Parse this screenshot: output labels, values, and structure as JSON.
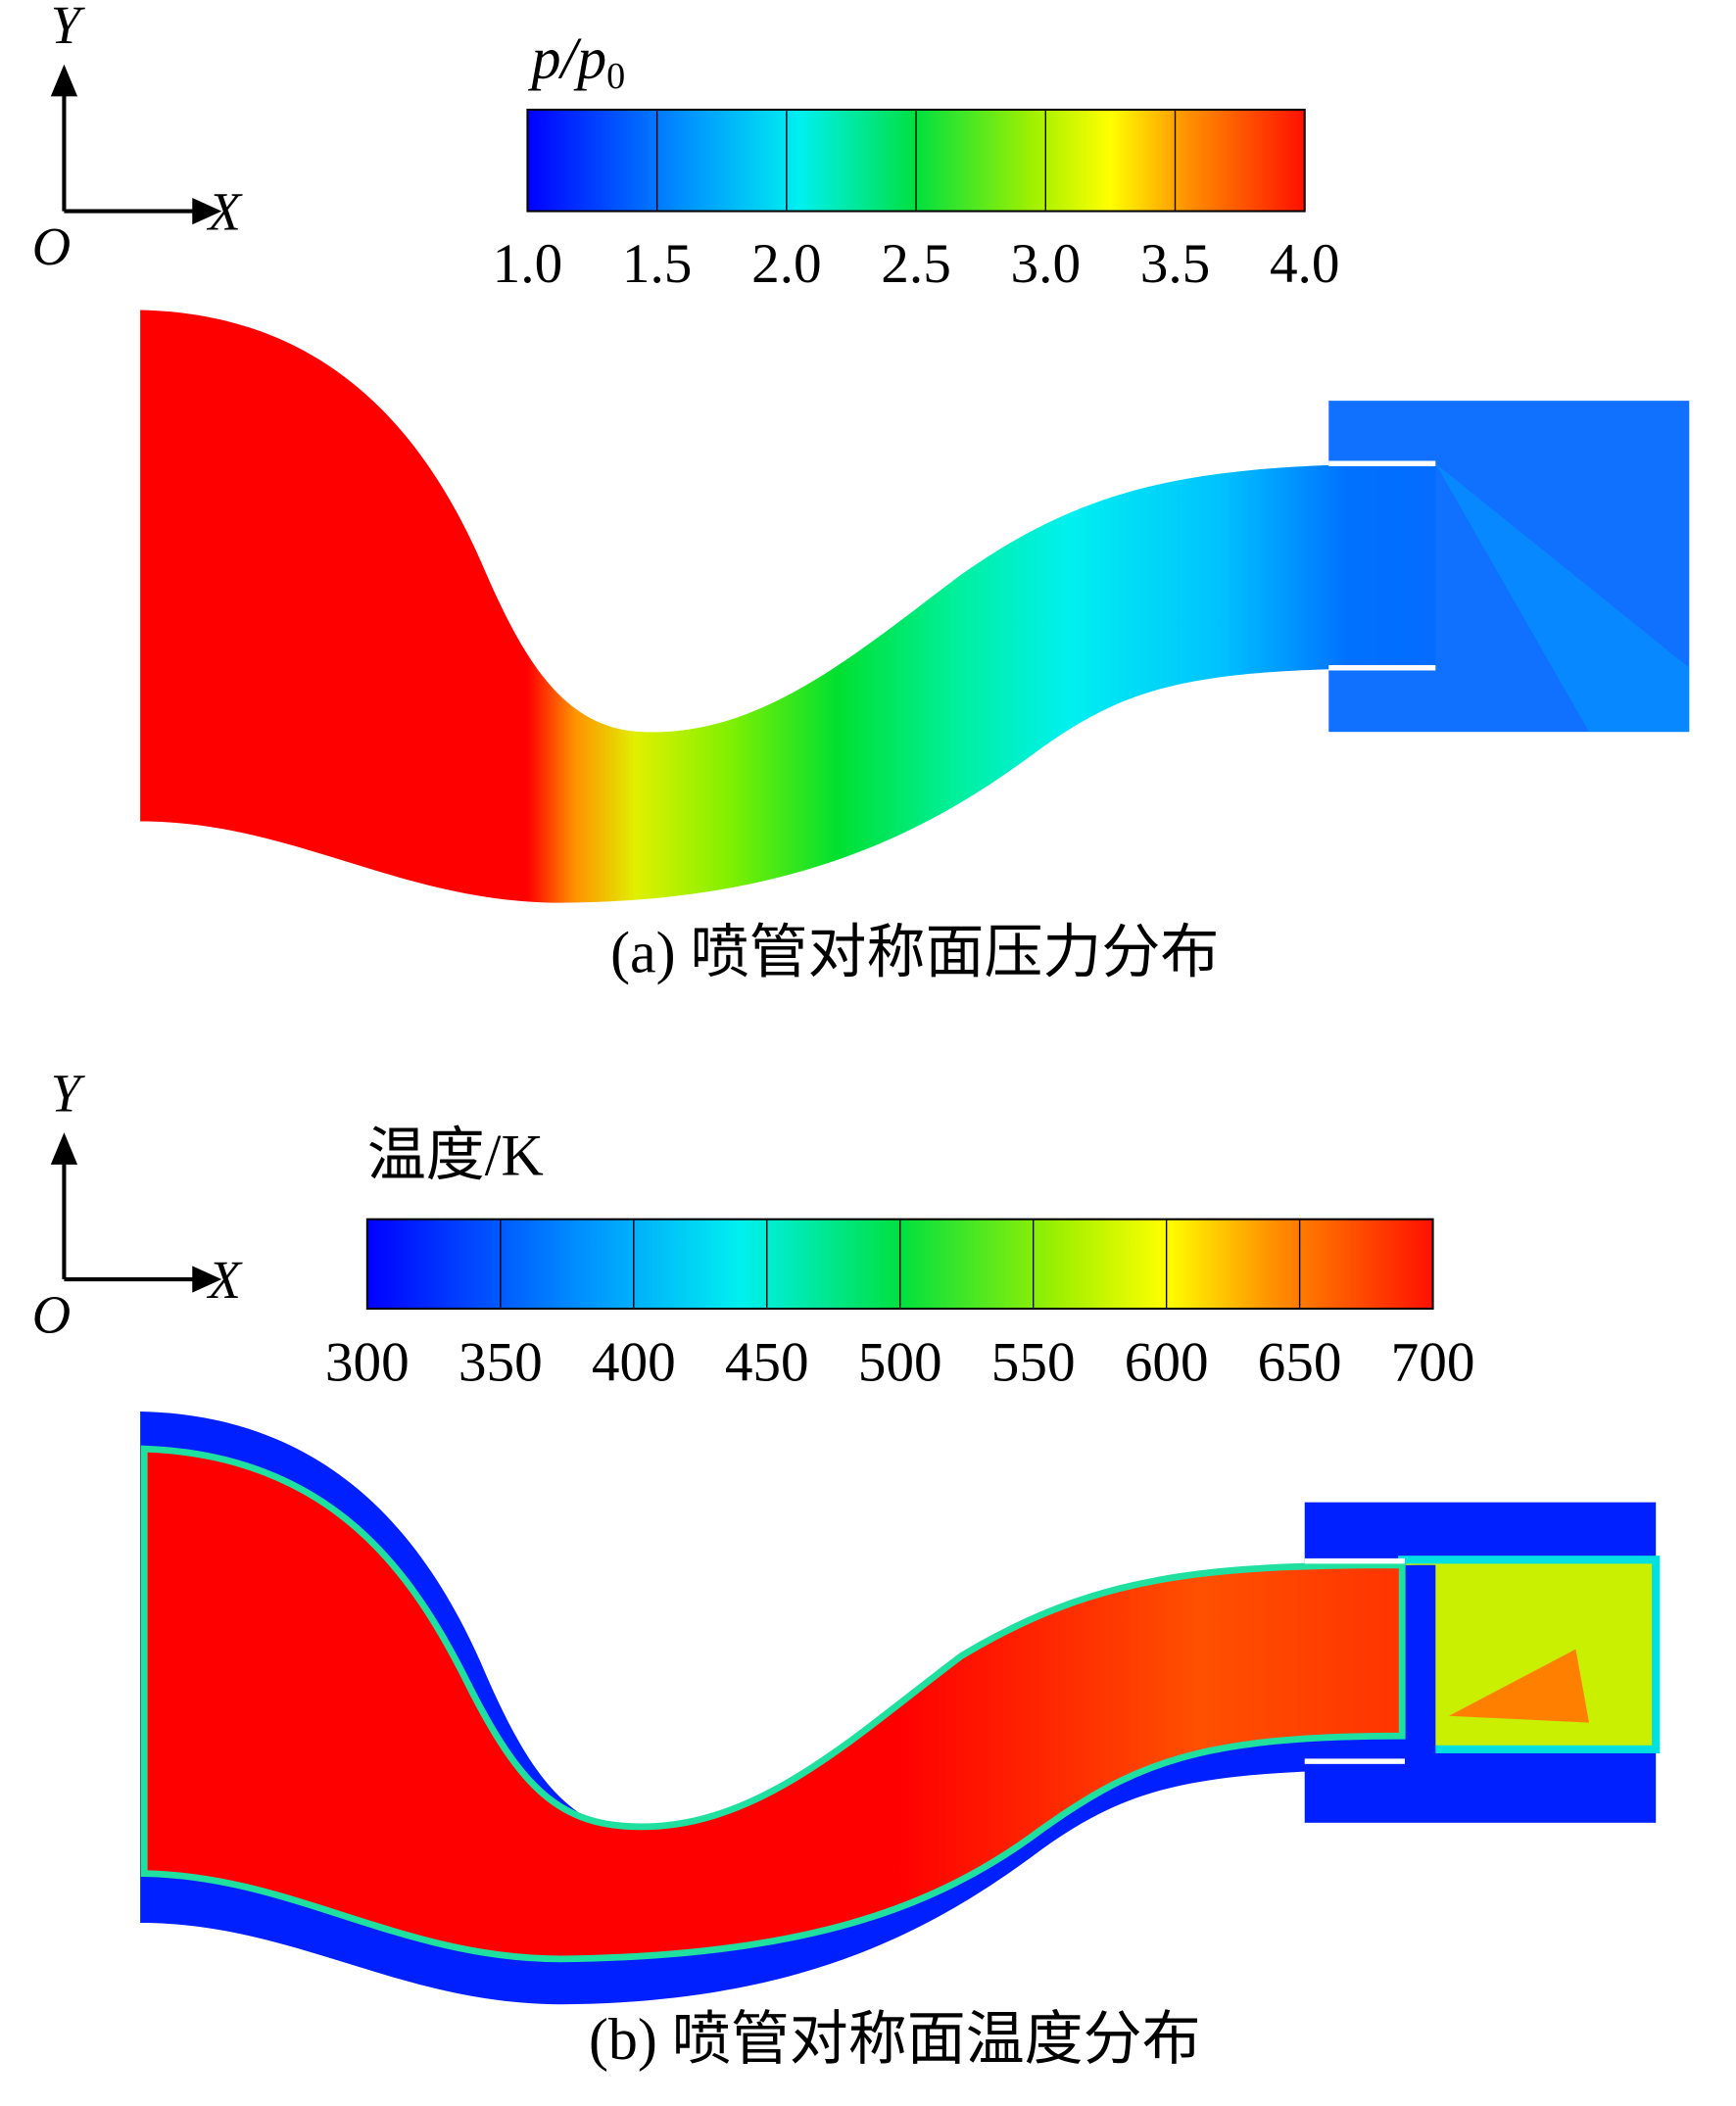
{
  "panels": [
    {
      "axes": {
        "y": "Y",
        "x": "X",
        "origin": "O"
      },
      "colorbar": {
        "title": "p/p",
        "title_subscript": "0",
        "range": [
          1,
          4
        ],
        "ticks": [
          {
            "value": 1,
            "label": "1.0"
          },
          {
            "value": 1.5,
            "label": "1.5"
          },
          {
            "value": 2,
            "label": "2.0"
          },
          {
            "value": 2.5,
            "label": "2.5"
          },
          {
            "value": 3,
            "label": "3.0"
          },
          {
            "value": 3.5,
            "label": "3.5"
          },
          {
            "value": 4,
            "label": "4.0"
          }
        ]
      },
      "caption": "(a) 喷管对称面压力分布"
    },
    {
      "axes": {
        "y": "Y",
        "x": "X",
        "origin": "O"
      },
      "colorbar": {
        "title": "温度/K",
        "range": [
          300,
          700
        ],
        "ticks": [
          300,
          350,
          400,
          450,
          500,
          550,
          600,
          650,
          700
        ]
      },
      "caption": "(b) 喷管对称面温度分布"
    }
  ]
}
